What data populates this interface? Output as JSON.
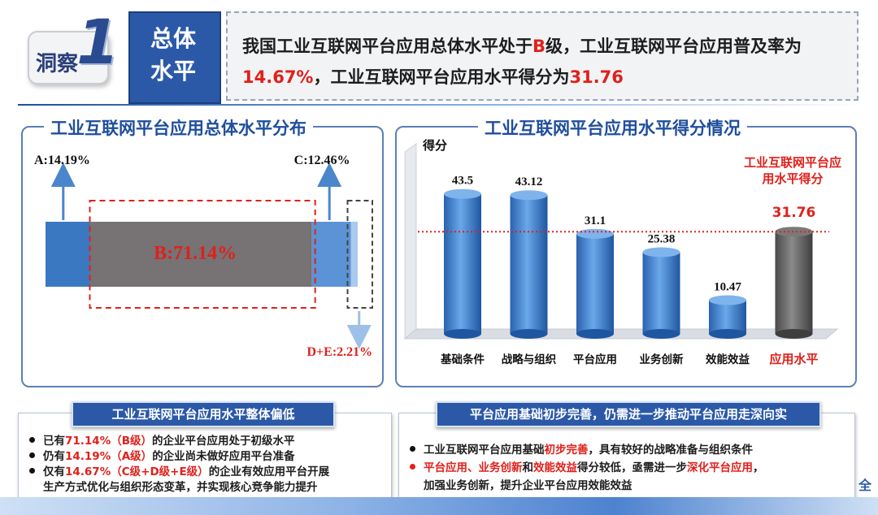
{
  "header": {
    "badge_text": "洞察",
    "badge_number": "1",
    "tag_line1": "总体",
    "tag_line2": "水平",
    "summary_p1": "我国工业互联网平台应用总体水平处于",
    "summary_grade": "B",
    "summary_p2": "级，工业互联网平台应用普及率为",
    "summary_rate": "14.67%",
    "summary_p3": "，工业互联网平台应用水平得分为",
    "summary_score": "31.76"
  },
  "left_panel": {
    "title": "工业互联网平台应用总体水平分布"
  },
  "right_panel": {
    "title": "工业互联网平台应用水平得分情况"
  },
  "chart_data": [
    {
      "type": "bar",
      "orientation": "horizontal-stacked",
      "title": "工业互联网平台应用总体水平分布",
      "segments": [
        {
          "label": "A:14.19%",
          "value": 14.19,
          "color": "#3a78c2"
        },
        {
          "label": "B:71.14%",
          "value": 71.14,
          "color": "#777274"
        },
        {
          "label": "C:12.46%",
          "value": 12.46,
          "color": "#5b93d6"
        },
        {
          "label": "D+E:2.21%",
          "value": 2.21,
          "color": "#a9c9ee"
        }
      ]
    },
    {
      "type": "bar",
      "title": "工业互联网平台应用水平得分情况",
      "ylabel": "得分",
      "categories": [
        "基础条件",
        "战略与组织",
        "平台应用",
        "业务创新",
        "效能效益",
        "应用水平"
      ],
      "values": [
        43.5,
        43.12,
        31.1,
        25.38,
        10.47,
        31.76
      ],
      "value_labels": [
        "43.5",
        "43.12",
        "31.1",
        "25.38",
        "10.47",
        "31.76"
      ],
      "highlight_index": 5,
      "reference_line": 31.76,
      "annotation": {
        "line1": "工业互联网平台应",
        "line2": "用水平得分"
      },
      "ylim": [
        0,
        50
      ],
      "colors": {
        "bar": "#3b7fd0",
        "highlight": "#6a6a6a",
        "reference": "#e0201b"
      }
    }
  ],
  "bottom_left": {
    "heading": "工业互联网平台应用水平整体偏低",
    "b1_pre": "已有",
    "b1_hl": "71.14%（B级）",
    "b1_post": "的企业平台应用处于初级水平",
    "b2_pre": "仍有",
    "b2_hl": "14.19%（A级）",
    "b2_post": "的企业尚未做好应用平台准备",
    "b3_pre": "仅有",
    "b3_hl": "14.67%（C级+D级+E级）",
    "b3_post": "的企业有效应用平台开展",
    "b3_line2": "生产方式优化与组织形态变革，并实现核心竞争能力提升"
  },
  "bottom_right": {
    "heading": "平台应用基础初步完善，仍需进一步推动平台应用走深向实",
    "b1_pre": "工业互联网平台应用基础",
    "b1_hl": "初步完善",
    "b1_post": "，具有较好的战略准备与组织条件",
    "b2_hl1": "平台应用",
    "b2_sep": "、",
    "b2_hl2": "业务创新",
    "b2_and": "和",
    "b2_hl3": "效能效益",
    "b2_mid": "得分较低，亟需进一步",
    "b2_hl4": "深化平台应用",
    "b2_end": "，",
    "b2_line2": "加强业务创新，提升企业平台应用效能效益"
  },
  "edge_text": "全"
}
